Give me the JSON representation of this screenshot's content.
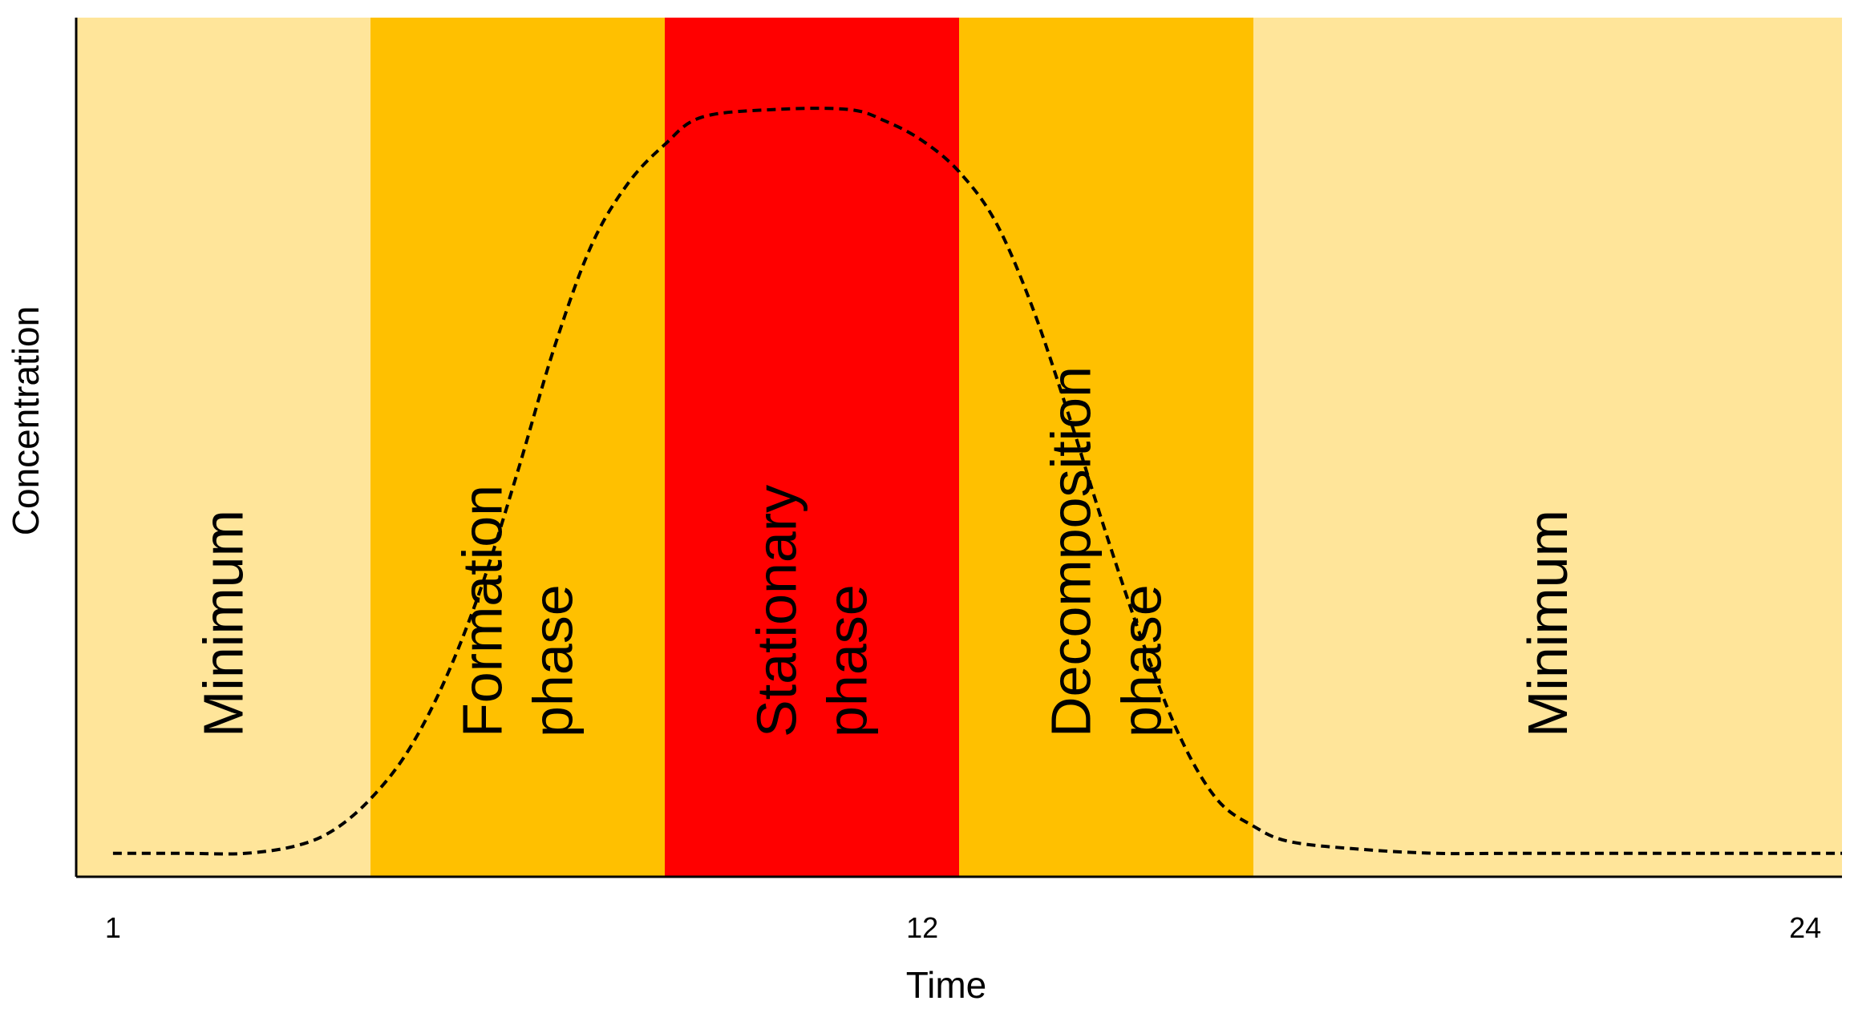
{
  "chart_data": {
    "type": "area",
    "title": "",
    "xlabel": "Time",
    "ylabel": "Concentration",
    "xlim": [
      0.5,
      24.5
    ],
    "ylim": [
      0,
      1
    ],
    "x_ticks": [
      1,
      12,
      24
    ],
    "x_tick_labels": [
      "1",
      "12",
      "24"
    ],
    "grid": false,
    "legend": "none",
    "colors": {
      "minimum": "#FFE59A",
      "transition": "#FFC000",
      "stationary": "#FF0000",
      "curve": "#000000",
      "axis": "#000000"
    },
    "phases": [
      {
        "key": "min1",
        "lines": [
          "Minimum"
        ],
        "x_start": 0.5,
        "x_end": 4.5,
        "color_key": "minimum"
      },
      {
        "key": "formation",
        "lines": [
          "Formation",
          "phase"
        ],
        "x_start": 4.5,
        "x_end": 8.5,
        "color_key": "transition"
      },
      {
        "key": "stationary",
        "lines": [
          "Stationary",
          "phase"
        ],
        "x_start": 8.5,
        "x_end": 12.5,
        "color_key": "stationary"
      },
      {
        "key": "decomposition",
        "lines": [
          "Decomposition",
          "phase"
        ],
        "x_start": 12.5,
        "x_end": 16.5,
        "color_key": "transition"
      },
      {
        "key": "min2",
        "lines": [
          "Minimum"
        ],
        "x_start": 16.5,
        "x_end": 24.5,
        "color_key": "minimum"
      }
    ],
    "series": [
      {
        "style": "dashed",
        "x": [
          1,
          2,
          2.8,
          3.5,
          4,
          4.5,
          5,
          5.5,
          6,
          6.5,
          7,
          7.5,
          8,
          8.5,
          9,
          10,
          11,
          11.5,
          12,
          12.5,
          13,
          13.5,
          14,
          14.5,
          15,
          15.5,
          16,
          16.5,
          17,
          18,
          19,
          20,
          22,
          24.5
        ],
        "y": [
          0.03,
          0.03,
          0.03,
          0.04,
          0.06,
          0.1,
          0.16,
          0.25,
          0.37,
          0.52,
          0.68,
          0.81,
          0.89,
          0.94,
          0.975,
          0.985,
          0.985,
          0.97,
          0.945,
          0.905,
          0.84,
          0.73,
          0.59,
          0.44,
          0.3,
          0.18,
          0.1,
          0.065,
          0.045,
          0.035,
          0.03,
          0.03,
          0.03,
          0.03
        ]
      }
    ]
  }
}
